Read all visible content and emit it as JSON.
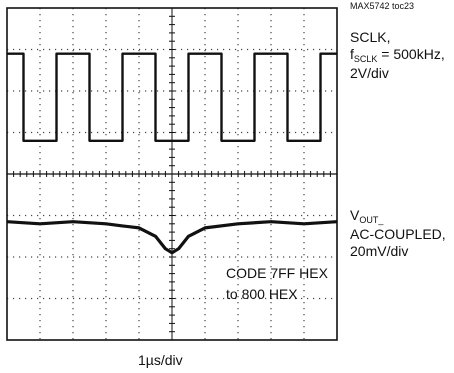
{
  "figure_id": "MAX5742 toc23",
  "chart_data": {
    "type": "line",
    "title": "",
    "xlabel": "1µs/div",
    "ylabel": "",
    "grid": true,
    "graticule": {
      "x_divisions": 10,
      "y_divisions": 8
    },
    "x_unit": "µs",
    "x_range": [
      0,
      10
    ],
    "series": [
      {
        "name": "SCLK",
        "label_lines": {
          "line1": "SCLK,",
          "line2_prefix": "f",
          "line2_sub": "SCLK",
          "line2_suffix": " = 500kHz,",
          "line3": "2V/div"
        },
        "scale": "2V/div",
        "frequency": "500kHz",
        "y_unit": "V",
        "y_range": [
          0,
          8
        ],
        "x": [
          0,
          0.5,
          0.5,
          1.5,
          1.5,
          2.5,
          2.5,
          3.5,
          3.5,
          4.5,
          4.5,
          5.5,
          5.5,
          6.5,
          6.5,
          7.5,
          7.5,
          8.5,
          8.5,
          9.5,
          9.5,
          10
        ],
        "y": [
          5.8,
          5.8,
          1.6,
          1.6,
          5.8,
          5.8,
          1.6,
          1.6,
          5.8,
          5.8,
          1.6,
          1.6,
          5.8,
          5.8,
          1.6,
          1.6,
          5.8,
          5.8,
          1.6,
          1.6,
          5.8,
          5.8
        ]
      },
      {
        "name": "VOUT_ AC-COUPLED",
        "label_lines": {
          "line1_main": "V",
          "line1_sub": "OUT_",
          "line2": "AC-COUPLED,",
          "line3": "20mV/div"
        },
        "scale": "20mV/div",
        "coupling": "AC",
        "y_unit": "mV",
        "y_range": [
          -80,
          80
        ],
        "x": [
          0,
          1,
          2,
          3,
          3.5,
          4,
          4.5,
          4.8,
          5,
          5.2,
          5.5,
          6,
          7,
          8,
          9,
          10
        ],
        "y": [
          -23,
          -24,
          -23,
          -24,
          -25,
          -26,
          -30,
          -36,
          -38,
          -36,
          -30,
          -26,
          -24,
          -23,
          -24,
          -23
        ]
      }
    ],
    "annotation": {
      "line1": "CODE 7FF HEX",
      "line2": "to 800 HEX"
    }
  }
}
